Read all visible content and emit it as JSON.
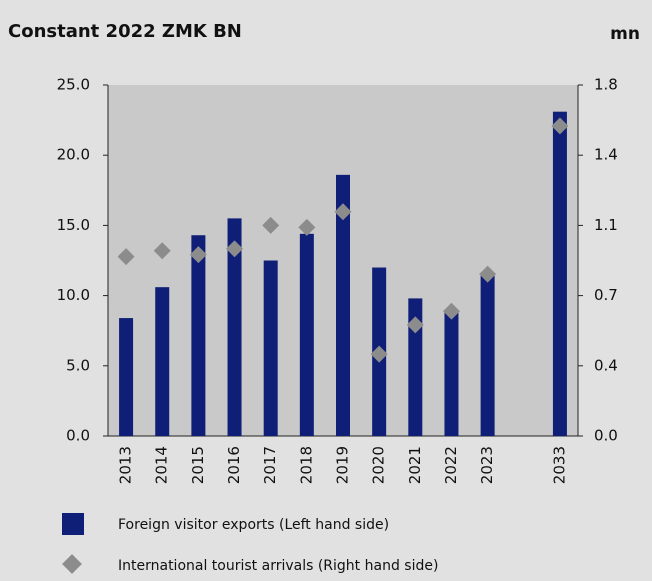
{
  "chart_data": {
    "type": "bar",
    "title": "Constant 2022 ZMK BN",
    "y2_label": "mn",
    "categories": [
      "2013",
      "2014",
      "2015",
      "2016",
      "2017",
      "2018",
      "2019",
      "2020",
      "2021",
      "2022",
      "2023",
      null,
      "2033"
    ],
    "series": [
      {
        "name": "Foreign visitor exports (Left hand side)",
        "color": "#0f1f78",
        "values": [
          8.4,
          10.6,
          14.3,
          15.5,
          12.5,
          14.4,
          18.6,
          12.0,
          9.8,
          8.9,
          11.4,
          null,
          23.1
        ]
      },
      {
        "name": "International tourist arrivals (Right hand side)",
        "color": "#8c8c8c",
        "marker": "diamond",
        "axis": "y2",
        "values": [
          0.92,
          0.95,
          0.93,
          0.96,
          1.08,
          1.07,
          1.15,
          0.42,
          0.57,
          0.64,
          0.83,
          null,
          1.59
        ]
      }
    ],
    "ylim": [
      0,
      25
    ],
    "yticks": [
      {
        "value": 0,
        "label": "0.0"
      },
      {
        "value": 5,
        "label": "5.0"
      },
      {
        "value": 10,
        "label": "10.0"
      },
      {
        "value": 15,
        "label": "15.0"
      },
      {
        "value": 20,
        "label": "20.0"
      },
      {
        "value": 25,
        "label": "25.0"
      }
    ],
    "y2lim": [
      0,
      1.8
    ],
    "y2ticks": [
      {
        "value": 0,
        "label": "0.0"
      },
      {
        "value": 0.36,
        "label": "0.4"
      },
      {
        "value": 0.72,
        "label": "0.7"
      },
      {
        "value": 1.08,
        "label": "1.1"
      },
      {
        "value": 1.44,
        "label": "1.4"
      },
      {
        "value": 1.8,
        "label": "1.8"
      }
    ],
    "grid": false
  }
}
